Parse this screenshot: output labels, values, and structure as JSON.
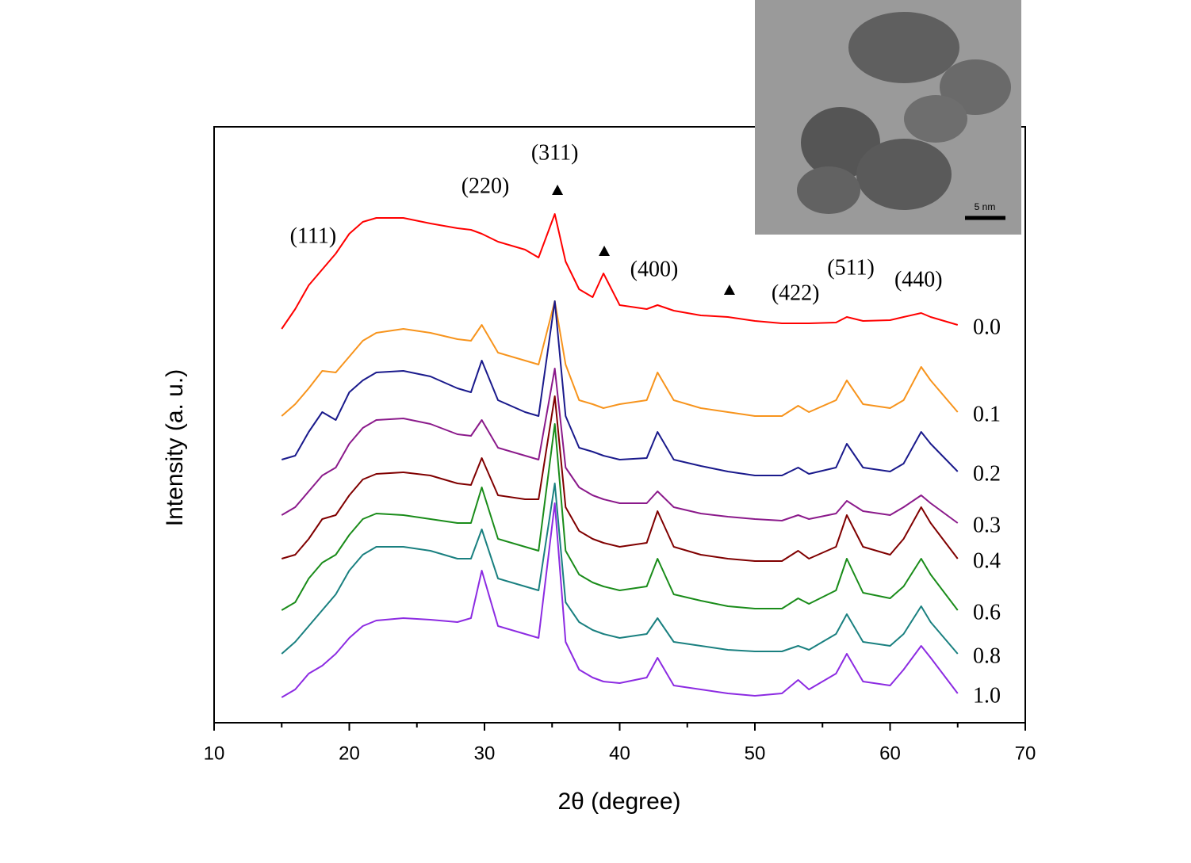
{
  "chart_data": {
    "type": "line",
    "xlabel": "2θ (degree)",
    "ylabel": "Intensity (a. u.)",
    "xlim": [
      10,
      70
    ],
    "xticks": [
      10,
      20,
      30,
      40,
      50,
      60,
      70
    ],
    "xminor_ticks": [
      15,
      25,
      35,
      45,
      55,
      65
    ],
    "ylim": [
      0,
      752
    ],
    "x": [
      15,
      16,
      17,
      18,
      19,
      20,
      21,
      22,
      24,
      26,
      28,
      29,
      29.8,
      31,
      33,
      34,
      35.2,
      36,
      37,
      38,
      38.8,
      40,
      42,
      42.8,
      44,
      46,
      48,
      50,
      52,
      53.2,
      54,
      56,
      56.8,
      58,
      60,
      61,
      62.3,
      63,
      65
    ],
    "series": [
      {
        "name": "0.0",
        "color": "#ff0000",
        "values": [
          497,
          522,
          552,
          572,
          592,
          617,
          632,
          637,
          637,
          630,
          624,
          622,
          617,
          607,
          597,
          587,
          642,
          582,
          547,
          537,
          567,
          527,
          522,
          527,
          520,
          514,
          512,
          507,
          504,
          504,
          504,
          505,
          512,
          507,
          508,
          512,
          517,
          512,
          502
        ]
      },
      {
        "name": "0.1",
        "color": "#f7941d",
        "values": [
          387,
          402,
          422,
          444,
          442,
          462,
          482,
          492,
          497,
          492,
          484,
          482,
          502,
          467,
          457,
          452,
          532,
          452,
          407,
          402,
          397,
          402,
          407,
          442,
          407,
          397,
          392,
          387,
          387,
          400,
          392,
          407,
          432,
          402,
          397,
          407,
          449,
          432,
          392
        ]
      },
      {
        "name": "0.2",
        "color": "#1a1a8c",
        "values": [
          332,
          337,
          367,
          392,
          382,
          417,
          432,
          442,
          444,
          437,
          422,
          417,
          457,
          407,
          392,
          387,
          532,
          387,
          347,
          342,
          337,
          332,
          334,
          367,
          332,
          324,
          317,
          312,
          312,
          322,
          314,
          322,
          352,
          322,
          317,
          327,
          367,
          352,
          317
        ]
      },
      {
        "name": "0.3",
        "color": "#8b1a8b",
        "values": [
          262,
          272,
          292,
          312,
          322,
          352,
          372,
          382,
          384,
          377,
          364,
          362,
          382,
          347,
          337,
          332,
          447,
          322,
          297,
          287,
          282,
          277,
          277,
          292,
          272,
          264,
          260,
          257,
          255,
          262,
          257,
          264,
          280,
          267,
          262,
          272,
          287,
          277,
          252
        ]
      },
      {
        "name": "0.4",
        "color": "#800000",
        "values": [
          207,
          212,
          232,
          257,
          262,
          287,
          307,
          314,
          316,
          312,
          302,
          300,
          334,
          287,
          282,
          282,
          412,
          272,
          242,
          232,
          227,
          222,
          227,
          267,
          222,
          212,
          207,
          204,
          204,
          217,
          207,
          222,
          262,
          222,
          212,
          232,
          272,
          252,
          207
        ]
      },
      {
        "name": "0.6",
        "color": "#1a8c1a",
        "values": [
          142,
          152,
          182,
          202,
          212,
          237,
          257,
          264,
          262,
          257,
          252,
          252,
          297,
          232,
          222,
          217,
          377,
          217,
          187,
          177,
          172,
          167,
          172,
          207,
          162,
          154,
          147,
          144,
          144,
          157,
          150,
          167,
          207,
          164,
          157,
          172,
          207,
          187,
          142
        ]
      },
      {
        "name": "0.8",
        "color": "#1a8080",
        "values": [
          87,
          102,
          122,
          142,
          162,
          192,
          212,
          222,
          222,
          217,
          207,
          207,
          244,
          182,
          172,
          167,
          302,
          152,
          127,
          117,
          112,
          107,
          112,
          132,
          102,
          97,
          92,
          90,
          90,
          97,
          92,
          112,
          137,
          102,
          97,
          112,
          147,
          127,
          87
        ]
      },
      {
        "name": "1.0",
        "color": "#8c2be2",
        "values": [
          32,
          42,
          62,
          72,
          87,
          107,
          122,
          129,
          132,
          130,
          127,
          132,
          192,
          122,
          112,
          107,
          277,
          102,
          67,
          57,
          52,
          50,
          57,
          82,
          47,
          42,
          37,
          34,
          37,
          54,
          42,
          62,
          87,
          52,
          47,
          67,
          97,
          82,
          37
        ]
      }
    ],
    "annotations": [
      {
        "text": "(111)",
        "x": 17.33,
        "y": 612
      },
      {
        "text": "(220)",
        "x": 30.06,
        "y": 675
      },
      {
        "text": "(311)",
        "x": 35.2,
        "y": 717
      },
      {
        "text": "(400)",
        "x": 42.55,
        "y": 570
      },
      {
        "text": "(422)",
        "x": 53.0,
        "y": 540
      },
      {
        "text": "(511)",
        "x": 57.1,
        "y": 572
      },
      {
        "text": "(440)",
        "x": 62.1,
        "y": 557
      }
    ],
    "markers": [
      {
        "x": 35.4,
        "y": 672
      },
      {
        "x": 38.86,
        "y": 595
      },
      {
        "x": 48.12,
        "y": 546
      }
    ]
  },
  "inset": {
    "scale_bar": "5 nm"
  }
}
